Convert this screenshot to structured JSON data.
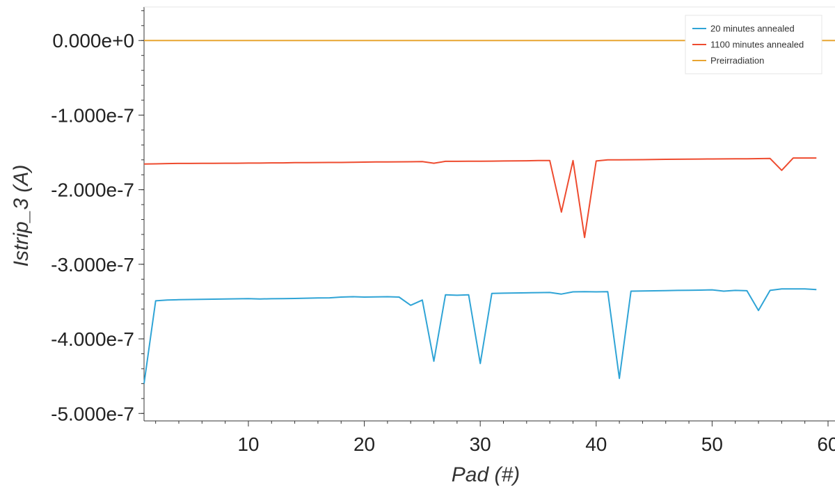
{
  "chart_data": {
    "type": "line",
    "xlabel": "Pad (#)",
    "ylabel": "Istrip_3 (A)",
    "xlim": [
      1,
      60
    ],
    "ylim": [
      -5.1e-07,
      4.5e-08
    ],
    "x_ticks": [
      10,
      20,
      30,
      40,
      50,
      60
    ],
    "x_tick_labels": [
      "10",
      "20",
      "30",
      "40",
      "50",
      "60"
    ],
    "y_ticks": [
      0,
      -1e-07,
      -2e-07,
      -3e-07,
      -4e-07,
      -5e-07
    ],
    "y_tick_labels": [
      "0.000e+0",
      "-1.000e-7",
      "-2.000e-7",
      "-3.000e-7",
      "-4.000e-7",
      "-5.000e-7"
    ],
    "legend_position": "top-right",
    "grid": false,
    "series": [
      {
        "name": "20 minutes annealed",
        "color": "#2fa4d6",
        "x": [
          1,
          2,
          3,
          4,
          5,
          6,
          7,
          8,
          9,
          10,
          11,
          12,
          13,
          14,
          15,
          16,
          17,
          18,
          19,
          20,
          21,
          22,
          23,
          24,
          25,
          26,
          27,
          28,
          29,
          30,
          31,
          32,
          33,
          34,
          35,
          36,
          37,
          38,
          39,
          40,
          41,
          42,
          43,
          44,
          45,
          46,
          47,
          48,
          49,
          50,
          51,
          52,
          53,
          54,
          55,
          56,
          57,
          58,
          59
        ],
        "y": [
          -4.6e-07,
          -3.49e-07,
          -3.48e-07,
          -3.475e-07,
          -3.472e-07,
          -3.47e-07,
          -3.468e-07,
          -3.466e-07,
          -3.463e-07,
          -3.46e-07,
          -3.465e-07,
          -3.462e-07,
          -3.46e-07,
          -3.458e-07,
          -3.455e-07,
          -3.452e-07,
          -3.45e-07,
          -3.44e-07,
          -3.435e-07,
          -3.44e-07,
          -3.437e-07,
          -3.435e-07,
          -3.44e-07,
          -3.55e-07,
          -3.48e-07,
          -4.3e-07,
          -3.41e-07,
          -3.415e-07,
          -3.41e-07,
          -4.33e-07,
          -3.39e-07,
          -3.387e-07,
          -3.385e-07,
          -3.383e-07,
          -3.38e-07,
          -3.378e-07,
          -3.4e-07,
          -3.37e-07,
          -3.368e-07,
          -3.37e-07,
          -3.368e-07,
          -4.53e-07,
          -3.36e-07,
          -3.358e-07,
          -3.356e-07,
          -3.354e-07,
          -3.35e-07,
          -3.348e-07,
          -3.346e-07,
          -3.343e-07,
          -3.36e-07,
          -3.35e-07,
          -3.355e-07,
          -3.62e-07,
          -3.35e-07,
          -3.33e-07,
          -3.33e-07,
          -3.33e-07,
          -3.34e-07
        ]
      },
      {
        "name": "1100 minutes annealed",
        "color": "#ee4b2f",
        "x": [
          1,
          2,
          3,
          4,
          5,
          6,
          7,
          8,
          9,
          10,
          11,
          12,
          13,
          14,
          15,
          16,
          17,
          18,
          19,
          20,
          21,
          22,
          23,
          24,
          25,
          26,
          27,
          28,
          29,
          30,
          31,
          32,
          33,
          34,
          35,
          36,
          37,
          38,
          39,
          40,
          41,
          42,
          43,
          44,
          45,
          46,
          47,
          48,
          49,
          50,
          51,
          52,
          53,
          54,
          55,
          56,
          57,
          58,
          59
        ],
        "y": [
          -1.655e-07,
          -1.653e-07,
          -1.65e-07,
          -1.648e-07,
          -1.648e-07,
          -1.647e-07,
          -1.646e-07,
          -1.645e-07,
          -1.645e-07,
          -1.643e-07,
          -1.643e-07,
          -1.64e-07,
          -1.64e-07,
          -1.638e-07,
          -1.637e-07,
          -1.636e-07,
          -1.635e-07,
          -1.635e-07,
          -1.633e-07,
          -1.63e-07,
          -1.628e-07,
          -1.627e-07,
          -1.626e-07,
          -1.625e-07,
          -1.624e-07,
          -1.645e-07,
          -1.62e-07,
          -1.62e-07,
          -1.619e-07,
          -1.618e-07,
          -1.617e-07,
          -1.615e-07,
          -1.614e-07,
          -1.612e-07,
          -1.61e-07,
          -1.61e-07,
          -2.3e-07,
          -1.61e-07,
          -2.64e-07,
          -1.615e-07,
          -1.6e-07,
          -1.6e-07,
          -1.598e-07,
          -1.597e-07,
          -1.595e-07,
          -1.593e-07,
          -1.592e-07,
          -1.59e-07,
          -1.589e-07,
          -1.588e-07,
          -1.587e-07,
          -1.586e-07,
          -1.585e-07,
          -1.583e-07,
          -1.582e-07,
          -1.74e-07,
          -1.575e-07,
          -1.575e-07,
          -1.575e-07
        ]
      },
      {
        "name": "Preirradiation",
        "color": "#e8a531",
        "x": [
          1,
          60
        ],
        "y": [
          0,
          0
        ]
      }
    ]
  }
}
